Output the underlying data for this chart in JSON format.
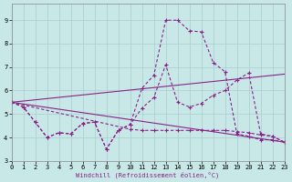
{
  "xlabel": "Windchill (Refroidissement éolien,°C)",
  "bg_color": "#c8e8e8",
  "grid_color": "#aacccc",
  "line_color": "#882288",
  "xlim": [
    0,
    23
  ],
  "ylim": [
    3.0,
    9.7
  ],
  "yticks": [
    3,
    4,
    5,
    6,
    7,
    8,
    9
  ],
  "xticks": [
    0,
    1,
    2,
    3,
    4,
    5,
    6,
    7,
    8,
    9,
    10,
    11,
    12,
    13,
    14,
    15,
    16,
    17,
    18,
    19,
    20,
    21,
    22,
    23
  ],
  "line1_x": [
    0,
    1,
    2,
    3,
    4,
    5,
    6,
    7,
    8,
    9,
    10,
    11,
    12,
    13,
    14,
    15,
    16,
    17,
    18,
    19,
    20,
    21,
    22,
    23
  ],
  "line1_y": [
    5.5,
    5.3,
    4.65,
    4.0,
    4.2,
    4.15,
    4.6,
    4.65,
    3.5,
    4.3,
    4.55,
    6.1,
    6.65,
    9.0,
    9.0,
    8.55,
    8.5,
    7.2,
    6.8,
    4.15,
    4.05,
    3.9,
    3.9,
    3.8
  ],
  "line2_x": [
    0,
    1,
    2,
    3,
    4,
    5,
    6,
    7,
    8,
    9,
    10,
    11,
    12,
    13,
    14,
    15,
    16,
    17,
    18,
    19,
    20,
    21,
    22,
    23
  ],
  "line2_y": [
    5.5,
    5.3,
    4.65,
    4.0,
    4.2,
    4.15,
    4.6,
    4.65,
    3.5,
    4.3,
    4.55,
    5.25,
    5.7,
    7.1,
    5.5,
    5.3,
    5.45,
    5.8,
    6.0,
    6.45,
    6.75,
    4.15,
    4.05,
    3.8
  ],
  "line3_x": [
    0,
    10,
    11,
    12,
    13,
    14,
    15,
    16,
    17,
    18,
    19,
    20,
    21,
    22,
    23
  ],
  "line3_y": [
    5.5,
    4.35,
    4.3,
    4.3,
    4.3,
    4.3,
    4.3,
    4.3,
    4.3,
    4.3,
    4.25,
    4.2,
    4.1,
    4.05,
    3.8
  ],
  "trend1_x": [
    0,
    23
  ],
  "trend1_y": [
    5.5,
    6.7
  ],
  "trend2_x": [
    0,
    23
  ],
  "trend2_y": [
    5.5,
    3.8
  ]
}
